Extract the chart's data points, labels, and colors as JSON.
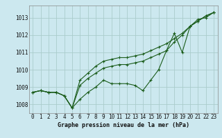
{
  "title": "Graphe pression niveau de la mer (hPa)",
  "background_color": "#cce8ef",
  "grid_color": "#aacccc",
  "line_color": "#1a5c1a",
  "hours": [
    0,
    1,
    2,
    3,
    4,
    5,
    6,
    7,
    8,
    9,
    10,
    11,
    12,
    13,
    14,
    15,
    16,
    17,
    18,
    19,
    20,
    21,
    22,
    23
  ],
  "series1": [
    1008.7,
    1008.8,
    1008.7,
    1008.7,
    1008.5,
    1007.8,
    1008.3,
    1008.7,
    1009.0,
    1009.4,
    1009.2,
    1009.2,
    1009.2,
    1009.1,
    1008.8,
    1009.4,
    1010.0,
    1011.1,
    1012.1,
    1011.0,
    1012.5,
    1012.9,
    1013.0,
    1013.3
  ],
  "series2": [
    1008.7,
    1008.8,
    1008.7,
    1008.7,
    1008.5,
    1007.8,
    1009.4,
    1009.8,
    1010.2,
    1010.5,
    1010.6,
    1010.7,
    1010.7,
    1010.8,
    1010.9,
    1011.1,
    1011.3,
    1011.5,
    1011.8,
    1012.1,
    1012.5,
    1012.8,
    1013.1,
    1013.3
  ],
  "series3": [
    1008.7,
    1008.8,
    1008.7,
    1008.7,
    1008.5,
    1007.8,
    1009.1,
    1009.5,
    1009.8,
    1010.1,
    1010.2,
    1010.3,
    1010.3,
    1010.4,
    1010.5,
    1010.7,
    1010.9,
    1011.1,
    1011.6,
    1012.0,
    1012.5,
    1012.8,
    1013.1,
    1013.3
  ],
  "ylim_min": 1007.5,
  "ylim_max": 1013.7,
  "yticks": [
    1008,
    1009,
    1010,
    1011,
    1012,
    1013
  ],
  "title_fontsize": 6.0,
  "tick_fontsize": 5.5
}
